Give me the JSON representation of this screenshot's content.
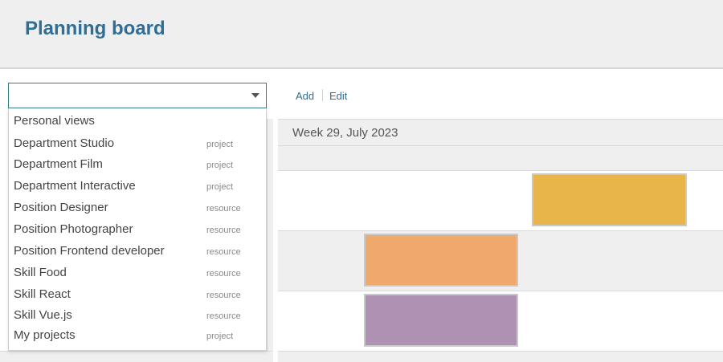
{
  "header": {
    "title": "Planning board"
  },
  "toolbar": {
    "add_label": "Add",
    "edit_label": "Edit"
  },
  "view_select": {
    "value": ""
  },
  "dropdown": {
    "section_label": "Personal views",
    "items": [
      {
        "label": "Department Studio",
        "type": "project"
      },
      {
        "label": "Department Film",
        "type": "project"
      },
      {
        "label": "Department Interactive",
        "type": "project"
      },
      {
        "label": "Position Designer",
        "type": "resource"
      },
      {
        "label": "Position Photographer",
        "type": "resource"
      },
      {
        "label": "Position Frontend developer",
        "type": "resource"
      },
      {
        "label": "Skill Food",
        "type": "resource"
      },
      {
        "label": "Skill React",
        "type": "resource"
      },
      {
        "label": "Skill Vue.js",
        "type": "resource"
      },
      {
        "label": "My projects",
        "type": "project"
      }
    ]
  },
  "gantt": {
    "week_label": "Week 29, July 2023",
    "bar_colors": {
      "yellow": "#e8b54a",
      "orange": "#f0a96c",
      "purple": "#af91b4"
    }
  }
}
